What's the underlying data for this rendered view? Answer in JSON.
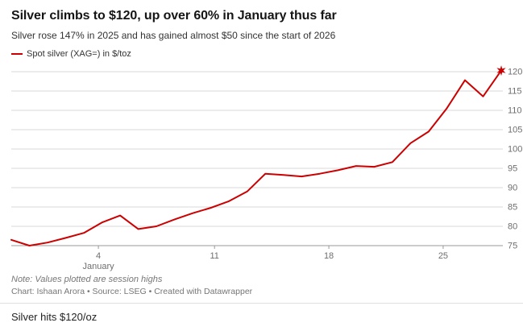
{
  "header": {
    "title": "Silver climbs to $120, up over 60% in January thus far",
    "subtitle": "Silver rose 147% in 2025 and has gained almost $50 since the start of 2026"
  },
  "legend": {
    "label": "Spot silver (XAG=) in $/toz",
    "color": "#cc0000"
  },
  "chart_data": {
    "type": "line",
    "title": "Silver climbs to $120, up over 60% in January thus far",
    "subtitle": "Silver rose 147% in 2025 and has gained almost $50 since the start of 2026",
    "xlabel": "January",
    "ylabel": "$/toz",
    "x_tick_labels": [
      "4",
      "11",
      "18",
      "25"
    ],
    "x_tick_positions": [
      4.8,
      11.2,
      17.5,
      23.8
    ],
    "y_ticks": [
      75,
      80,
      85,
      90,
      95,
      100,
      105,
      110,
      115,
      120
    ],
    "ylim": [
      75,
      120
    ],
    "grid": true,
    "legend_position": "top-left",
    "series": [
      {
        "name": "Spot silver (XAG=) in $/toz",
        "color": "#cc0000",
        "values": [
          76.5,
          75.0,
          75.8,
          77.0,
          78.3,
          81.0,
          82.8,
          79.3,
          80.0,
          81.8,
          83.4,
          84.8,
          86.5,
          89.0,
          93.6,
          93.3,
          92.9,
          93.6,
          94.5,
          95.6,
          95.4,
          96.6,
          101.5,
          104.5,
          110.5,
          117.8,
          113.6,
          120.3
        ]
      }
    ],
    "end_marker": "star"
  },
  "footer": {
    "note": "Note: Values plotted are session highs",
    "credits": "Chart: Ishaan Arora • Source: LSEG • Created with Datawrapper",
    "caption": "Silver hits $120/oz"
  },
  "colors": {
    "accent": "#cc0000",
    "grid": "#dadada",
    "axis": "#999999",
    "tick_text": "#6e6e6e",
    "text_muted": "#767676"
  }
}
